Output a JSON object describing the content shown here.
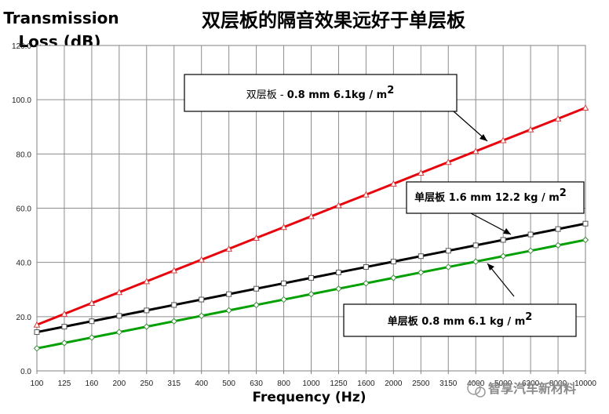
{
  "chart_data": {
    "type": "line",
    "title": "双层板的隔音效果远好于单层板",
    "ylabel_line1": "Transmission",
    "ylabel_line2": "Loss (dB)",
    "xlabel": "Frequency (Hz)",
    "ylim": [
      0,
      120
    ],
    "y_ticks": [
      "0.0",
      "20.0",
      "40.0",
      "60.0",
      "80.0",
      "100.0",
      "120.0"
    ],
    "categories": [
      "100",
      "125",
      "160",
      "200",
      "250",
      "315",
      "400",
      "500",
      "630",
      "800",
      "1000",
      "1250",
      "1600",
      "2000",
      "2500",
      "3150",
      "4000",
      "5000",
      "6300",
      "8000",
      "10000"
    ],
    "grid": true,
    "legend": "none",
    "series": [
      {
        "name": "双层板 - 0.8 mm 6.1kg / m2",
        "color": "#e8000b",
        "marker": "triangle",
        "values": [
          17,
          21,
          25,
          29,
          33,
          37,
          41,
          45,
          49,
          53,
          57,
          61,
          65,
          69,
          73,
          77,
          81,
          85,
          89,
          93,
          97
        ]
      },
      {
        "name": "单层板 1.6 mm 12.2 kg / m2",
        "color": "#000000",
        "marker": "square",
        "values": [
          14.3,
          16.3,
          18.3,
          20.3,
          22.3,
          24.3,
          26.3,
          28.3,
          30.3,
          32.3,
          34.3,
          36.3,
          38.3,
          40.3,
          42.3,
          44.3,
          46.3,
          48.3,
          50.3,
          52.3,
          54.3
        ]
      },
      {
        "name": "单层板 0.8 mm 6.1 kg / m2",
        "color": "#00a000",
        "marker": "diamond",
        "values": [
          8.3,
          10.3,
          12.3,
          14.3,
          16.3,
          18.3,
          20.3,
          22.3,
          24.3,
          26.3,
          28.3,
          30.3,
          32.3,
          34.3,
          36.3,
          38.3,
          40.3,
          42.3,
          44.3,
          46.3,
          48.3
        ]
      }
    ],
    "annotations": [
      {
        "main": "双层板 - ",
        "bold": "0.8 mm 6.1kg / m",
        "sup": "2"
      },
      {
        "main": "单层板 ",
        "bold": "1.6 mm 12.2 kg / m",
        "sup": "2"
      },
      {
        "main": "单层板 ",
        "bold": "0.8 mm 6.1 kg / m",
        "sup": "2"
      }
    ]
  },
  "watermark": "智享汽车新材料"
}
